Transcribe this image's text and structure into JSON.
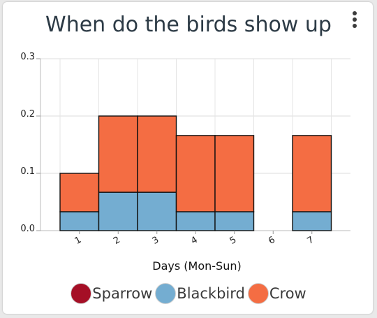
{
  "title": "When do the birds show up",
  "chart_data": {
    "type": "bar",
    "stacked": true,
    "categories": [
      "1",
      "2",
      "3",
      "4",
      "5",
      "6",
      "7"
    ],
    "series": [
      {
        "name": "Sparrow",
        "color": "#a50f26",
        "values": [
          0,
          0,
          0,
          0,
          0,
          0,
          0
        ]
      },
      {
        "name": "Blackbird",
        "color": "#74add1",
        "values": [
          0.033,
          0.067,
          0.067,
          0.033,
          0.033,
          0,
          0.033
        ]
      },
      {
        "name": "Crow",
        "color": "#f46d43",
        "values": [
          0.067,
          0.133,
          0.133,
          0.133,
          0.133,
          0,
          0.133
        ]
      }
    ],
    "xlabel": "Days (Mon-Sun)",
    "ylabel": "",
    "ylim": [
      0,
      0.3
    ],
    "yticks": [
      "0.0",
      "0.1",
      "0.2",
      "0.3"
    ],
    "grid": true,
    "legend": "bottom"
  }
}
